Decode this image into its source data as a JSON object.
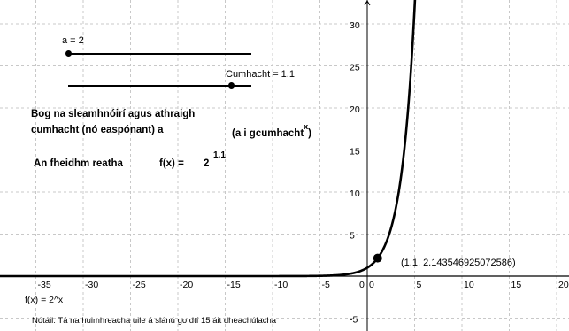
{
  "chart_data": {
    "type": "line",
    "function_label": "f(x) = 2^x",
    "base": 2,
    "xlim": [
      -38,
      21
    ],
    "ylim": [
      -8,
      31
    ],
    "x_ticks": [
      -35,
      -30,
      -25,
      -20,
      -15,
      -10,
      -5,
      0,
      5,
      10,
      15,
      20
    ],
    "y_ticks": [
      -5,
      5,
      10,
      15,
      20,
      25,
      30
    ],
    "grid": true,
    "point": {
      "x": 1.1,
      "y": 2.143546925072586,
      "label": "(1.1, 2.143546925072586)"
    },
    "colors": {
      "curve": "#000000",
      "grid": "#c8c8c8",
      "axis": "#000000"
    }
  },
  "sliders": {
    "a": {
      "label": "a = 2",
      "value": 2,
      "position_fraction": 0.0
    },
    "power": {
      "label": "Cumhacht = 1.1",
      "value": 1.1,
      "position_fraction": 0.89
    }
  },
  "texts": {
    "instruction_line1": "Bog na sleamhnóirí agus athraigh",
    "instruction_line2": "cumhacht (nó easpónant) a",
    "instruction_formula": "(a i gcumhacht",
    "instruction_sup": "x",
    "instruction_close": ")",
    "current_label": "An fheidhm reatha",
    "fx_label": "f(x) =",
    "fx_base": "2",
    "fx_exponent": "1.1",
    "function_label": "f(x) = 2^x",
    "note": "Nótáil: Tá na huimhreacha uile á slánú go dtí 15 áit dheachúlacha"
  }
}
